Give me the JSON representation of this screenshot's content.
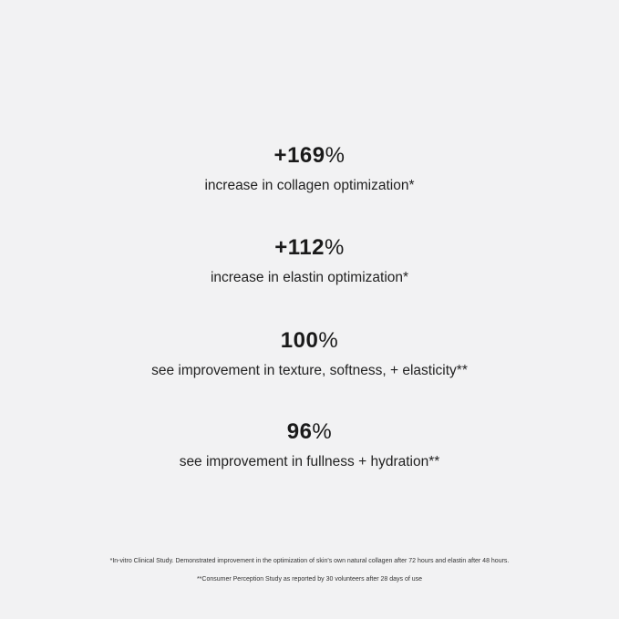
{
  "stats": [
    {
      "value": "+169",
      "unit": "%",
      "label": "increase in collagen optimization*"
    },
    {
      "value": "+112",
      "unit": "%",
      "label": "increase in elastin optimization*"
    },
    {
      "value": "100",
      "unit": "%",
      "label": "see improvement in texture, softness, + elasticity**"
    },
    {
      "value": "96",
      "unit": "%",
      "label": "see improvement in fullness + hydration**"
    }
  ],
  "footnotes": [
    "*In-vitro Clinical Study. Demonstrated improvement in the optimization of skin's own natural collagen after 72 hours and elastin after 48 hours.",
    "**Consumer Perception Study as reported by 30 volunteers after 28 days of use"
  ]
}
